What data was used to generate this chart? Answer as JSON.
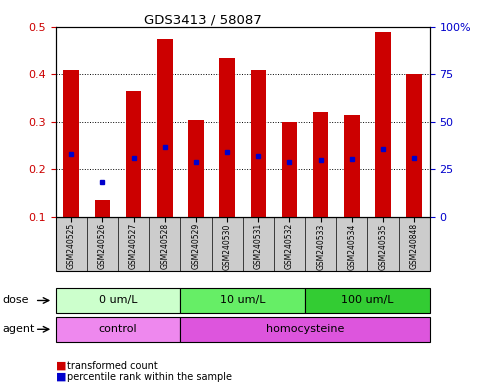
{
  "title": "GDS3413 / 58087",
  "samples": [
    "GSM240525",
    "GSM240526",
    "GSM240527",
    "GSM240528",
    "GSM240529",
    "GSM240530",
    "GSM240531",
    "GSM240532",
    "GSM240533",
    "GSM240534",
    "GSM240535",
    "GSM240848"
  ],
  "transformed_count": [
    0.41,
    0.135,
    0.365,
    0.475,
    0.305,
    0.435,
    0.41,
    0.3,
    0.32,
    0.315,
    0.49,
    0.4
  ],
  "percentile_rank": [
    0.232,
    0.173,
    0.225,
    0.248,
    0.215,
    0.237,
    0.228,
    0.215,
    0.22,
    0.222,
    0.242,
    0.225
  ],
  "ylim": [
    0.1,
    0.5
  ],
  "yticks_left": [
    0.1,
    0.2,
    0.3,
    0.4,
    0.5
  ],
  "yticks_right": [
    0,
    25,
    50,
    75,
    100
  ],
  "bar_color": "#cc0000",
  "marker_color": "#0000cc",
  "plot_bg": "#ffffff",
  "dose_groups": [
    {
      "label": "0 um/L",
      "start": 0,
      "end": 3,
      "color": "#ccffcc"
    },
    {
      "label": "10 um/L",
      "start": 4,
      "end": 7,
      "color": "#66ee66"
    },
    {
      "label": "100 um/L",
      "start": 8,
      "end": 11,
      "color": "#33cc33"
    }
  ],
  "agent_groups": [
    {
      "label": "control",
      "start": 0,
      "end": 3,
      "color": "#ee88ee"
    },
    {
      "label": "homocysteine",
      "start": 4,
      "end": 11,
      "color": "#dd55dd"
    }
  ],
  "dose_label": "dose",
  "agent_label": "agent",
  "legend_red": "transformed count",
  "legend_blue": "percentile rank within the sample",
  "tick_color_left": "#cc0000",
  "tick_color_right": "#0000cc",
  "sample_bg": "#cccccc"
}
